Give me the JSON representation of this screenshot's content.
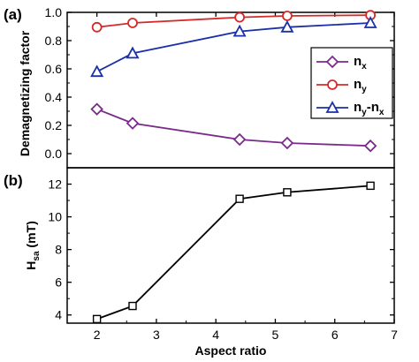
{
  "chart_data": [
    {
      "type": "line",
      "panel_label": "(a)",
      "x": [
        2.0,
        2.6,
        4.4,
        5.2,
        6.6
      ],
      "xlim": [
        1.5,
        7
      ],
      "ylim": [
        -0.1,
        1.0
      ],
      "yticks": [
        "0.0",
        "0.2",
        "0.4",
        "0.6",
        "0.8",
        "1.0"
      ],
      "ylabel": "Demagnetizing factor",
      "legend_position": "right",
      "series": [
        {
          "name": "n_x",
          "label_main": "n",
          "label_sub": "x",
          "marker": "diamond",
          "color": "#7B2A8C",
          "values": [
            0.315,
            0.215,
            0.1,
            0.075,
            0.055
          ]
        },
        {
          "name": "n_y",
          "label_main": "n",
          "label_sub": "y",
          "marker": "circle",
          "color": "#D42A2A",
          "values": [
            0.895,
            0.925,
            0.965,
            0.975,
            0.98
          ]
        },
        {
          "name": "n_y-n_x",
          "label_main": "n",
          "label_sub": "y",
          "label_mid": "-n",
          "label_sub2": "x",
          "marker": "triangle",
          "color": "#1A2FA8",
          "values": [
            0.58,
            0.71,
            0.865,
            0.895,
            0.925
          ]
        }
      ]
    },
    {
      "type": "line",
      "panel_label": "(b)",
      "x": [
        2.0,
        2.6,
        4.4,
        5.2,
        6.6
      ],
      "xlim": [
        1.5,
        7
      ],
      "xticks": [
        "2",
        "3",
        "4",
        "5",
        "6",
        "7"
      ],
      "ylim": [
        3.5,
        13
      ],
      "yticks": [
        "4",
        "6",
        "8",
        "10",
        "12"
      ],
      "xlabel": "Aspect ratio",
      "ylabel_main": "H",
      "ylabel_sub": "sa",
      "ylabel_unit": " (mT)",
      "series": [
        {
          "marker": "square",
          "color": "#000000",
          "values": [
            3.75,
            4.55,
            11.1,
            11.5,
            11.9
          ]
        }
      ]
    }
  ]
}
